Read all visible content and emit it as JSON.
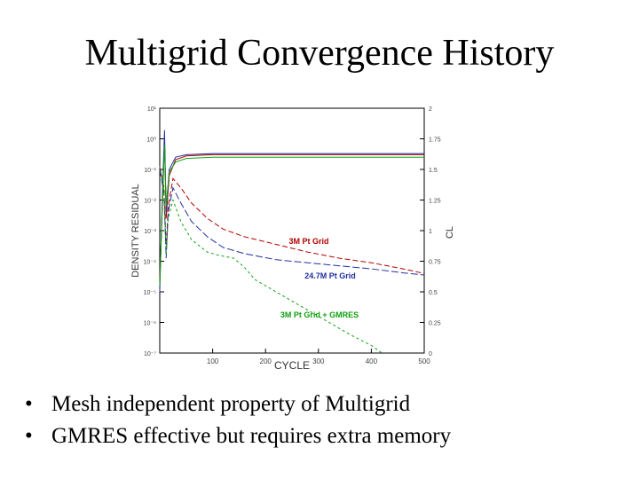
{
  "slide": {
    "title": "Multigrid Convergence History",
    "bullets": [
      "Mesh independent property of Multigrid",
      "GMRES effective but requires extra memory"
    ]
  },
  "chart_data": {
    "type": "line",
    "xlabel": "CYCLE",
    "ylabel_left": "DENSITY RESIDUAL",
    "ylabel_right": "CL",
    "xlim": [
      0,
      500
    ],
    "x_ticks": [
      "100",
      "200",
      "300",
      "400",
      "500"
    ],
    "y_left_log_range": [
      -7,
      1
    ],
    "y_left_ticks": [
      "10⁻⁷",
      "10⁻⁶",
      "10⁻⁵",
      "10⁻⁴",
      "10⁻³",
      "10⁻²",
      "10⁻¹",
      "10⁰",
      "10¹"
    ],
    "y_right_range": [
      0,
      2
    ],
    "y_right_ticks": [
      "0",
      "0.25",
      "0.5",
      "0.75",
      "1",
      "1.25",
      "1.5",
      "1.75",
      "2"
    ],
    "grid": false,
    "series": [
      {
        "name": "3M Pt Grid",
        "kind": "residual",
        "color": "#b00000",
        "dash": "6,3",
        "points": [
          [
            0,
            -0.9
          ],
          [
            8,
            -1.6
          ],
          [
            12,
            -3.6
          ],
          [
            16,
            -2.2
          ],
          [
            25,
            -1.3
          ],
          [
            40,
            -1.6
          ],
          [
            60,
            -2.1
          ],
          [
            90,
            -2.6
          ],
          [
            120,
            -2.95
          ],
          [
            160,
            -3.2
          ],
          [
            220,
            -3.45
          ],
          [
            280,
            -3.7
          ],
          [
            340,
            -3.9
          ],
          [
            400,
            -4.05
          ],
          [
            460,
            -4.25
          ],
          [
            500,
            -4.4
          ]
        ]
      },
      {
        "name": "24.7M Pt Grid",
        "kind": "residual",
        "color": "#2030a0",
        "dash": "8,3",
        "points": [
          [
            0,
            -1.0
          ],
          [
            8,
            -1.8
          ],
          [
            12,
            -3.9
          ],
          [
            16,
            -2.4
          ],
          [
            25,
            -1.6
          ],
          [
            40,
            -2.1
          ],
          [
            60,
            -2.7
          ],
          [
            90,
            -3.2
          ],
          [
            120,
            -3.55
          ],
          [
            160,
            -3.75
          ],
          [
            220,
            -3.95
          ],
          [
            280,
            -4.05
          ],
          [
            340,
            -4.15
          ],
          [
            400,
            -4.25
          ],
          [
            460,
            -4.38
          ],
          [
            500,
            -4.45
          ]
        ]
      },
      {
        "name": "3M Pt Grid + GMRES",
        "kind": "residual",
        "color": "#10a010",
        "dash": "3,3",
        "points": [
          [
            0,
            -0.9
          ],
          [
            8,
            -1.7
          ],
          [
            12,
            -3.8
          ],
          [
            16,
            -2.6
          ],
          [
            25,
            -2.0
          ],
          [
            40,
            -2.7
          ],
          [
            60,
            -3.3
          ],
          [
            90,
            -3.7
          ],
          [
            110,
            -3.8
          ],
          [
            140,
            -3.9
          ],
          [
            160,
            -4.2
          ],
          [
            180,
            -4.6
          ],
          [
            210,
            -4.9
          ],
          [
            240,
            -5.2
          ],
          [
            280,
            -5.6
          ],
          [
            320,
            -6.0
          ],
          [
            360,
            -6.4
          ],
          [
            400,
            -6.75
          ],
          [
            420,
            -7.0
          ]
        ]
      },
      {
        "name": "",
        "kind": "cl",
        "color": "#b00000",
        "dash": "none",
        "points": [
          [
            0,
            0.6
          ],
          [
            5,
            1.2
          ],
          [
            9,
            1.75
          ],
          [
            12,
            1.1
          ],
          [
            18,
            1.45
          ],
          [
            30,
            1.58
          ],
          [
            50,
            1.61
          ],
          [
            100,
            1.62
          ],
          [
            500,
            1.62
          ]
        ]
      },
      {
        "name": "",
        "kind": "cl",
        "color": "#2030a0",
        "dash": "none",
        "points": [
          [
            0,
            0.5
          ],
          [
            5,
            1.3
          ],
          [
            9,
            1.82
          ],
          [
            12,
            1.15
          ],
          [
            18,
            1.5
          ],
          [
            30,
            1.6
          ],
          [
            50,
            1.62
          ],
          [
            100,
            1.63
          ],
          [
            500,
            1.63
          ]
        ]
      },
      {
        "name": "",
        "kind": "cl",
        "color": "#10a010",
        "dash": "none",
        "points": [
          [
            0,
            0.55
          ],
          [
            5,
            1.25
          ],
          [
            9,
            1.7
          ],
          [
            12,
            1.2
          ],
          [
            18,
            1.48
          ],
          [
            30,
            1.56
          ],
          [
            50,
            1.59
          ],
          [
            100,
            1.6
          ],
          [
            500,
            1.6
          ]
        ]
      }
    ]
  }
}
